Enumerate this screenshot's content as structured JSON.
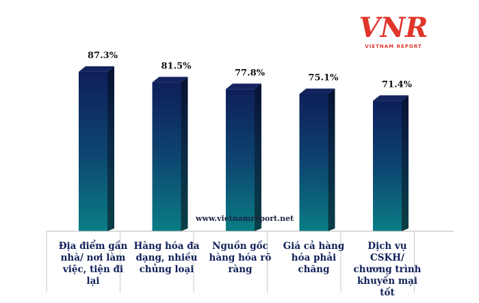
{
  "chart_data": {
    "type": "bar",
    "categories": [
      "Địa điểm gần nhà/ nơi làm việc, tiện đi lại",
      "Hàng hóa đa dạng, nhiều chủng loại",
      "Nguồn gốc hàng hóa rõ ràng",
      "Giá cả hàng hóa phải chăng",
      "Dịch vụ CSKH/ chương trình khuyến mại tốt"
    ],
    "values": [
      87.3,
      81.5,
      77.8,
      75.1,
      71.4
    ],
    "data_labels": [
      "87.3%",
      "81.5%",
      "77.8%",
      "75.1%",
      "71.4%"
    ],
    "title": "",
    "xlabel": "",
    "ylabel": "",
    "ylim": [
      0,
      100
    ],
    "grid": false,
    "legend": "none",
    "colors": {
      "bar_top": "#0e1f5a",
      "bar_bottom": "#0a7d85",
      "axis": "#b0b0b0",
      "label": "#10205a"
    }
  },
  "logo": {
    "mark": "VNR",
    "subtitle": "VIETNAM REPORT",
    "color": "#e0352b"
  },
  "watermark": "www.vietnamreport.net"
}
